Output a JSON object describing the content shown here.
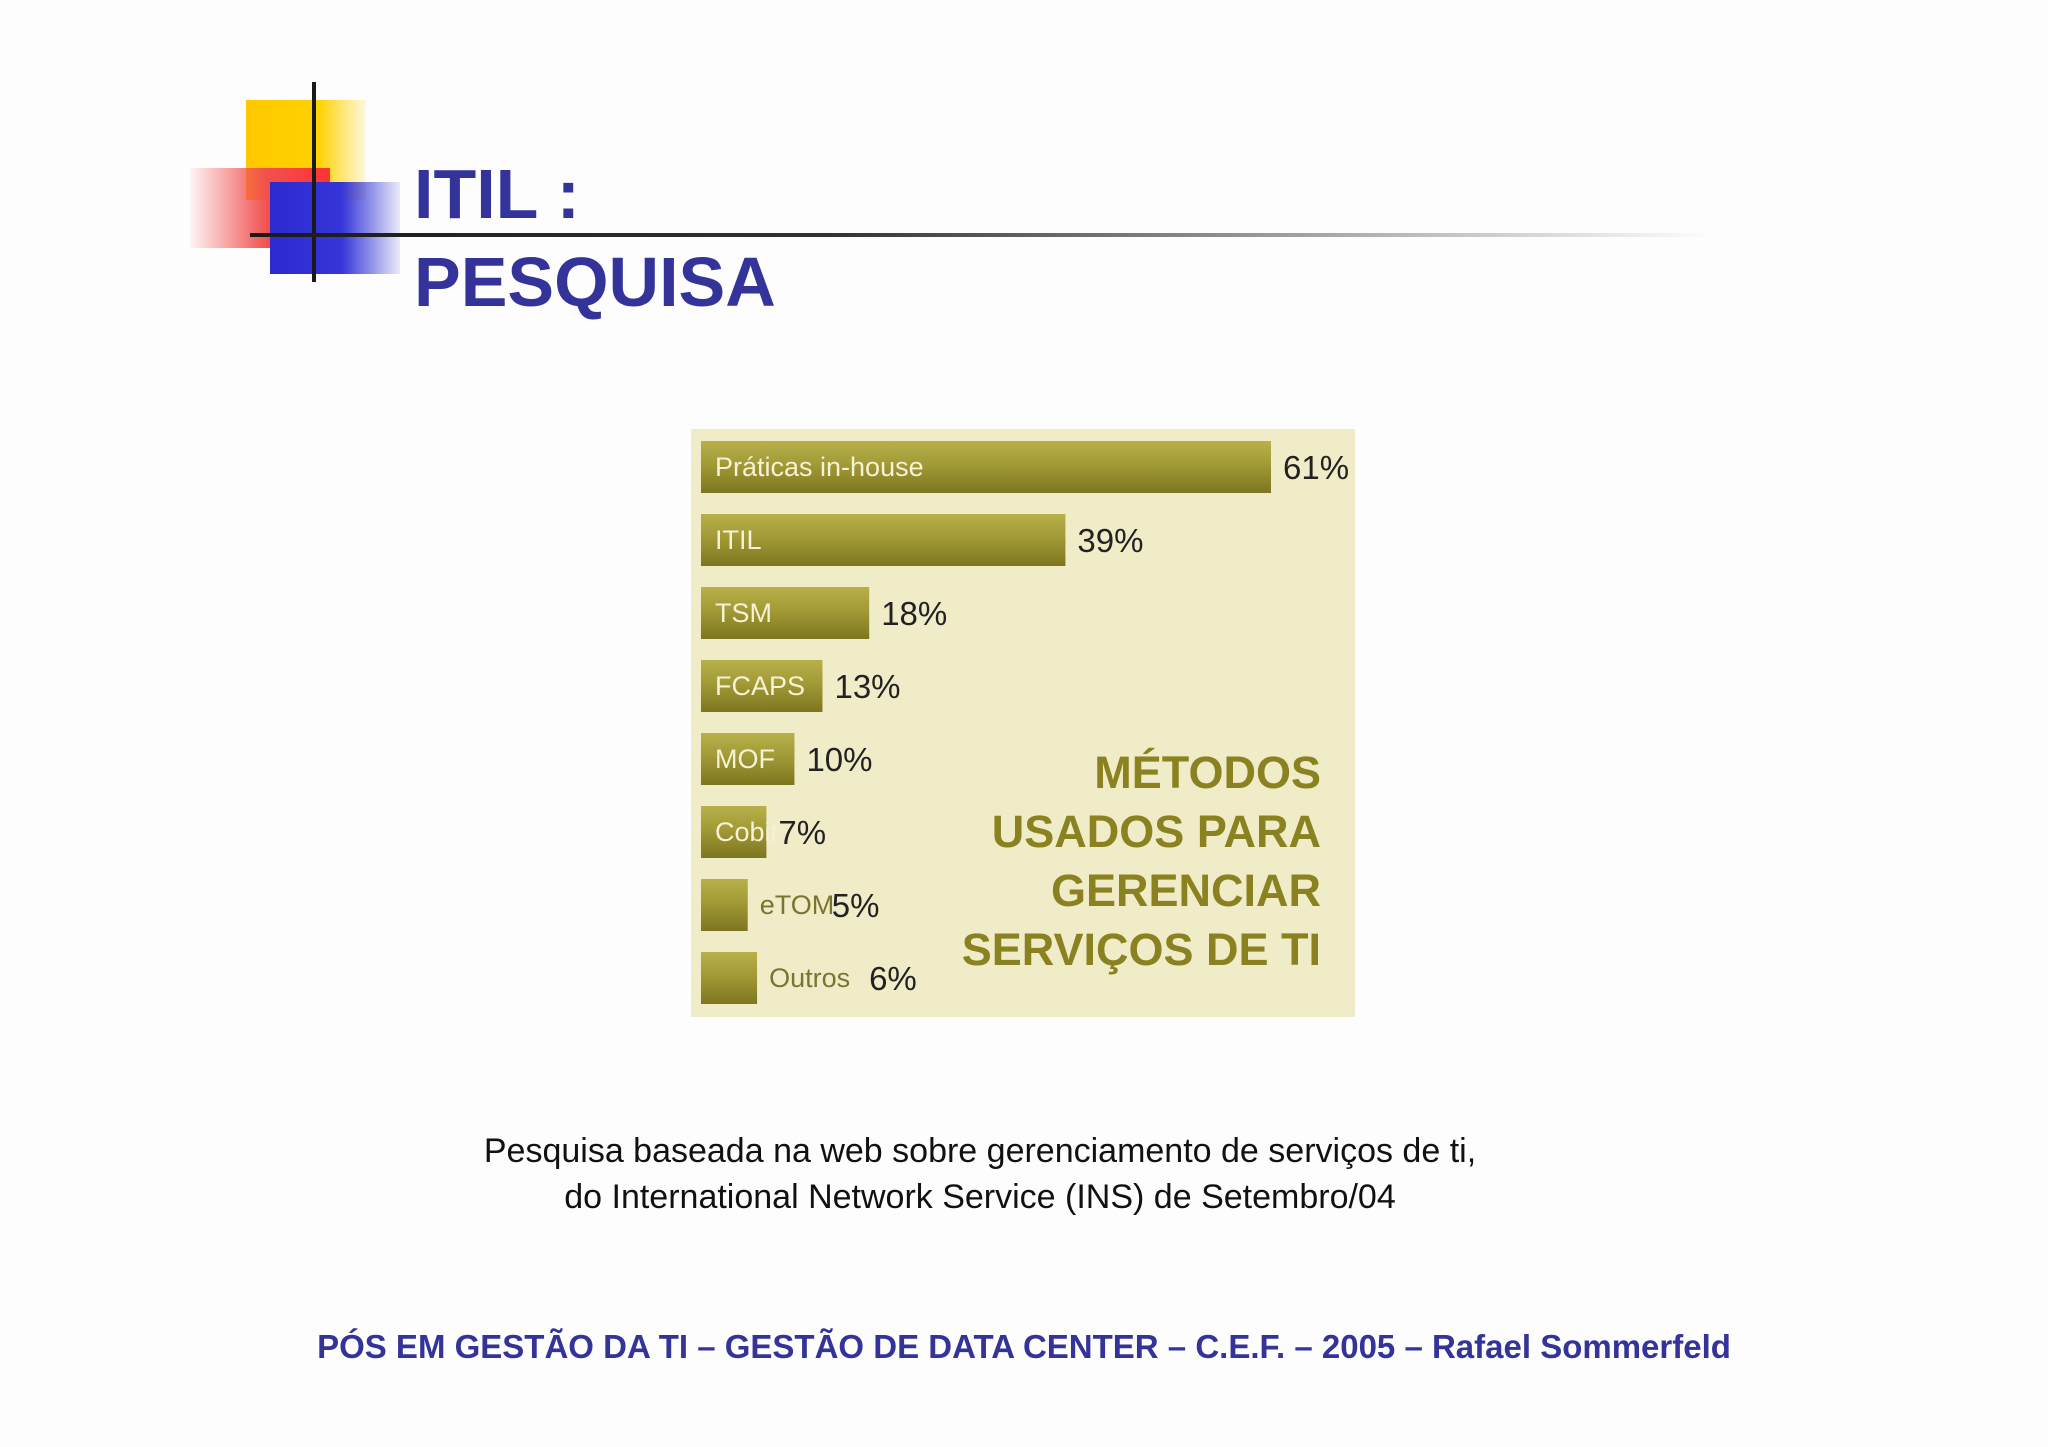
{
  "slide": {
    "title_line1": "ITIL :",
    "title_line2": "PESQUISA",
    "caption_line1": "Pesquisa baseada na web sobre gerenciamento de serviços de ti,",
    "caption_line2": "do International Network Service (INS) de Setembro/04",
    "footer": "PÓS EM GESTÃO DA TI – GESTÃO DE DATA CENTER – C.E.F. – 2005 – Rafael Sommerfeld",
    "colors": {
      "title": "#333399",
      "chart_background": "#f0ecc8",
      "bar": "#a29a36",
      "chart_title": "#8a8220"
    }
  },
  "chart_data": {
    "type": "bar",
    "orientation": "horizontal",
    "title_lines": [
      "MÉTODOS",
      "USADOS PARA",
      "GERENCIAR",
      "SERVIÇOS DE TI"
    ],
    "categories": [
      "Práticas in-house",
      "ITIL",
      "TSM",
      "FCAPS",
      "MOF",
      "Cobit",
      "eTOM",
      "Outros"
    ],
    "values": [
      61,
      39,
      18,
      13,
      10,
      7,
      5,
      6
    ],
    "value_labels": [
      "61%",
      "39%",
      "18%",
      "13%",
      "10%",
      "7%",
      "5%",
      "6%"
    ],
    "unit": "%",
    "xlim": [
      0,
      61
    ],
    "grid": false,
    "legend": "none"
  }
}
